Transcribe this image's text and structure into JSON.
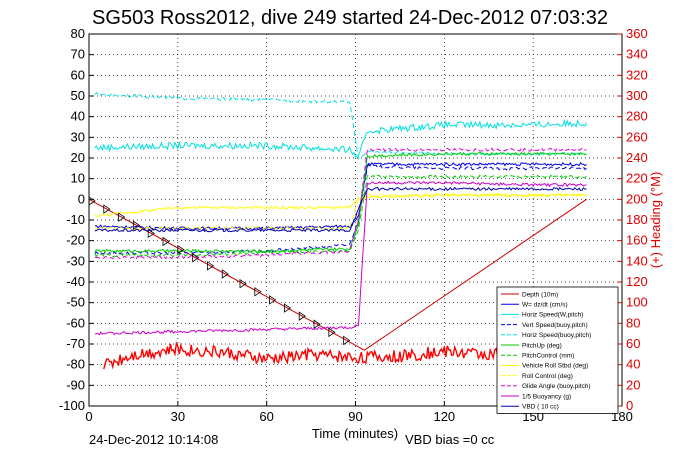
{
  "chart_data": {
    "type": "line",
    "title": "SG503 Ross2012, dive 249 started 24-Dec-2012 07:03:32",
    "xlabel": "Time (minutes)",
    "ylabel_right": "(+) Heading (°M)",
    "footer_left": "24-Dec-2012 10:14:08",
    "footer_right": "VBD bias =0 cc",
    "xlim": [
      0,
      180
    ],
    "ylim": [
      -100,
      80
    ],
    "ylim_right": [
      0,
      360
    ],
    "x_ticks": [
      "0",
      "30",
      "60",
      "90",
      "120",
      "150",
      "180"
    ],
    "y_ticks": [
      "-100",
      "-90",
      "-80",
      "-70",
      "-60",
      "-50",
      "-40",
      "-30",
      "-20",
      "-10",
      "0",
      "10",
      "20",
      "30",
      "40",
      "50",
      "60",
      "70",
      "80"
    ],
    "y_ticks_right": [
      "0",
      "20",
      "40",
      "60",
      "80",
      "100",
      "120",
      "140",
      "160",
      "180",
      "200",
      "220",
      "240",
      "260",
      "280",
      "300",
      "320",
      "340",
      "360"
    ],
    "grid": true,
    "legend_position": "bottom-right",
    "series": [
      {
        "name": "Depth (10m)",
        "color": "#cc0000",
        "style": "solid",
        "x": [
          0,
          93,
          168
        ],
        "y": [
          0,
          -73,
          0
        ]
      },
      {
        "name": "W= dz/dt (cm/s)",
        "color": "#0000ee",
        "style": "solid",
        "x": [
          2,
          30,
          60,
          88,
          91,
          94,
          120,
          150,
          168
        ],
        "y": [
          -13,
          -14,
          -14,
          -13,
          -8,
          17,
          17,
          17,
          17
        ]
      },
      {
        "name": "Horiz Speed(W,pitch)",
        "color": "#00e0e0",
        "style": "solid",
        "x": [
          2,
          30,
          60,
          88,
          91,
          94,
          120,
          150,
          168
        ],
        "y": [
          25,
          26,
          26,
          24,
          20,
          33,
          36,
          36,
          37
        ]
      },
      {
        "name": "Vert Speed(buoy,pitch)",
        "color": "#0000ee",
        "style": "dashed",
        "x": [
          2,
          30,
          60,
          88,
          91,
          94,
          120,
          150,
          168
        ],
        "y": [
          -26,
          -26,
          -25,
          -22,
          -10,
          16,
          15,
          15,
          15
        ]
      },
      {
        "name": "Horiz Speed(buoy,pitch)",
        "color": "#00e0e0",
        "style": "dashed",
        "x": [
          2,
          30,
          60,
          88,
          91,
          94,
          120,
          150,
          168
        ],
        "y": [
          51,
          49,
          48,
          47,
          20,
          23,
          22,
          22,
          22
        ]
      },
      {
        "name": "PitchUp (deg)",
        "color": "#00cc00",
        "style": "solid",
        "x": [
          2,
          30,
          60,
          88,
          91,
          94,
          120,
          150,
          168
        ],
        "y": [
          -25,
          -25,
          -25,
          -24,
          -12,
          21,
          22,
          22,
          22
        ]
      },
      {
        "name": "PitchControl (mm)",
        "color": "#00cc00",
        "style": "dashed",
        "x": [
          2,
          30,
          60,
          88,
          91,
          94,
          120,
          150,
          168
        ],
        "y": [
          -27,
          -27,
          -26,
          -25,
          -15,
          11,
          11,
          11,
          11
        ]
      },
      {
        "name": "Vehicle Roll Stbd (deg)",
        "color": "#ffff00",
        "style": "solid",
        "x": [
          2,
          30,
          60,
          88,
          91,
          94,
          120,
          150,
          168
        ],
        "y": [
          -8,
          -4,
          -4,
          -4,
          0,
          1,
          2,
          2,
          2
        ]
      },
      {
        "name": "Roll Control (deg)",
        "color": "#ffff00",
        "style": "dashed",
        "x": [
          2,
          30,
          60,
          88,
          91,
          94,
          120,
          150,
          168
        ],
        "y": [
          -14,
          -14,
          -14,
          -14,
          0,
          2,
          2,
          2,
          2
        ]
      },
      {
        "name": "Glide Angle (buoy,pitch)",
        "color": "#dd00dd",
        "style": "dashed",
        "x": [
          2,
          30,
          60,
          88,
          91,
          94,
          120,
          150,
          168
        ],
        "y": [
          -28,
          -28,
          -27,
          -25,
          -10,
          24,
          24,
          24,
          24
        ]
      },
      {
        "name": "1/5 Buoyancy (g)",
        "color": "#cc00cc",
        "style": "solid",
        "x": [
          2,
          30,
          60,
          88,
          91,
          94,
          120,
          150,
          168
        ],
        "y": [
          -65,
          -64,
          -63,
          -62,
          -61,
          8,
          8,
          7,
          7
        ]
      },
      {
        "name": "VBD ( 10 cc)",
        "color": "#0000aa",
        "style": "solid",
        "x": [
          2,
          30,
          60,
          88,
          91,
          94,
          120,
          150,
          168
        ],
        "y": [
          -15,
          -15,
          -15,
          -15,
          -5,
          5,
          5,
          5,
          5
        ]
      },
      {
        "name": "(+) Heading",
        "color": "#ff0000",
        "style": "solid",
        "axis": "right",
        "x": [
          5,
          15,
          30,
          45,
          60,
          75,
          90,
          105,
          120,
          135,
          150,
          165
        ],
        "y": [
          40,
          50,
          55,
          52,
          45,
          50,
          47,
          48,
          53,
          50,
          53,
          52
        ]
      }
    ]
  }
}
